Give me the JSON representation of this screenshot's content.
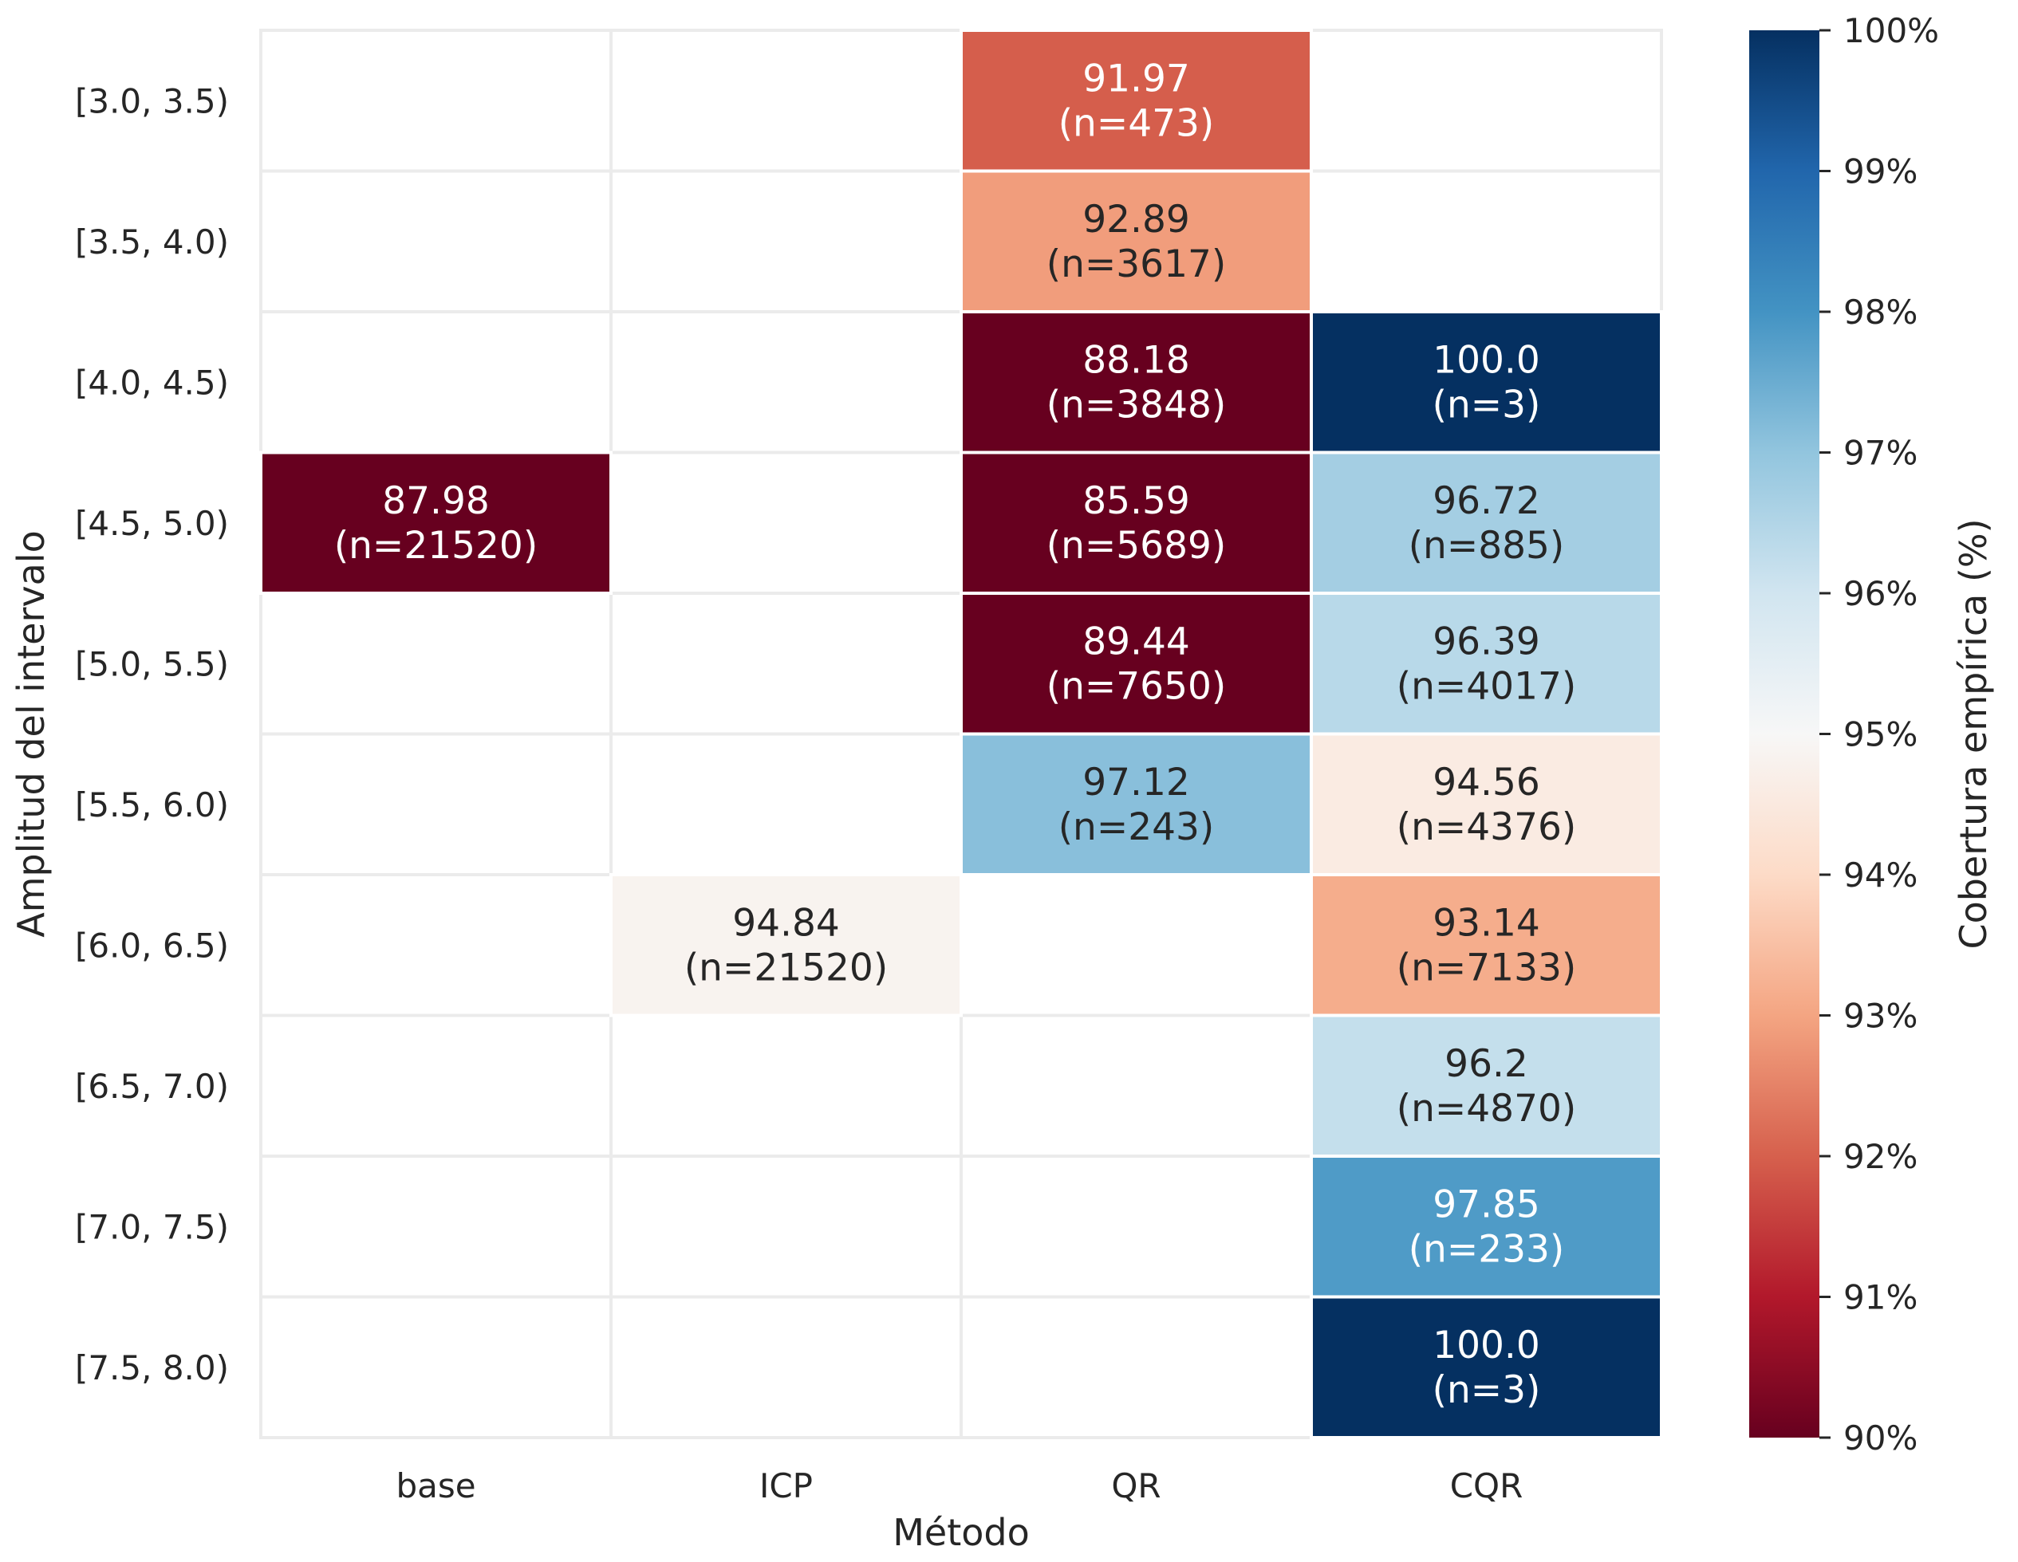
{
  "chart_data": {
    "type": "heatmap",
    "xlabel": "Método",
    "ylabel": "Amplitud del intervalo",
    "x_categories": [
      "base",
      "ICP",
      "QR",
      "CQR"
    ],
    "y_categories": [
      "[3.0, 3.5)",
      "[3.5, 4.0)",
      "[4.0, 4.5)",
      "[4.5, 5.0)",
      "[5.0, 5.5)",
      "[5.5, 6.0)",
      "[6.0, 6.5)",
      "[6.5, 7.0)",
      "[7.0, 7.5)",
      "[7.5, 8.0)"
    ],
    "cells": [
      {
        "x": "QR",
        "y": "[3.0, 3.5)",
        "value": 91.97,
        "label": "91.97",
        "count_label": "(n=473)"
      },
      {
        "x": "QR",
        "y": "[3.5, 4.0)",
        "value": 92.89,
        "label": "92.89",
        "count_label": "(n=3617)"
      },
      {
        "x": "QR",
        "y": "[4.0, 4.5)",
        "value": 88.18,
        "label": "88.18",
        "count_label": "(n=3848)"
      },
      {
        "x": "CQR",
        "y": "[4.0, 4.5)",
        "value": 100.0,
        "label": "100.0",
        "count_label": "(n=3)"
      },
      {
        "x": "base",
        "y": "[4.5, 5.0)",
        "value": 87.98,
        "label": "87.98",
        "count_label": "(n=21520)"
      },
      {
        "x": "QR",
        "y": "[4.5, 5.0)",
        "value": 85.59,
        "label": "85.59",
        "count_label": "(n=5689)"
      },
      {
        "x": "CQR",
        "y": "[4.5, 5.0)",
        "value": 96.72,
        "label": "96.72",
        "count_label": "(n=885)"
      },
      {
        "x": "QR",
        "y": "[5.0, 5.5)",
        "value": 89.44,
        "label": "89.44",
        "count_label": "(n=7650)"
      },
      {
        "x": "CQR",
        "y": "[5.0, 5.5)",
        "value": 96.39,
        "label": "96.39",
        "count_label": "(n=4017)"
      },
      {
        "x": "QR",
        "y": "[5.5, 6.0)",
        "value": 97.12,
        "label": "97.12",
        "count_label": "(n=243)"
      },
      {
        "x": "CQR",
        "y": "[5.5, 6.0)",
        "value": 94.56,
        "label": "94.56",
        "count_label": "(n=4376)"
      },
      {
        "x": "ICP",
        "y": "[6.0, 6.5)",
        "value": 94.84,
        "label": "94.84",
        "count_label": "(n=21520)"
      },
      {
        "x": "CQR",
        "y": "[6.0, 6.5)",
        "value": 93.14,
        "label": "93.14",
        "count_label": "(n=7133)"
      },
      {
        "x": "CQR",
        "y": "[6.5, 7.0)",
        "value": 96.2,
        "label": "96.2",
        "count_label": "(n=4870)"
      },
      {
        "x": "CQR",
        "y": "[7.0, 7.5)",
        "value": 97.85,
        "label": "97.85",
        "count_label": "(n=233)"
      },
      {
        "x": "CQR",
        "y": "[7.5, 8.0)",
        "value": 100.0,
        "label": "100.0",
        "count_label": "(n=3)"
      }
    ],
    "colorbar": {
      "label": "Cobertura empírica (%)",
      "range": [
        90,
        100
      ],
      "colormap": "RdBu",
      "ticks": [
        {
          "value": 100,
          "label": "100%"
        },
        {
          "value": 99,
          "label": "99%"
        },
        {
          "value": 98,
          "label": "98%"
        },
        {
          "value": 97,
          "label": "97%"
        },
        {
          "value": 96,
          "label": "96%"
        },
        {
          "value": 95,
          "label": "95%"
        },
        {
          "value": 94,
          "label": "94%"
        },
        {
          "value": 93,
          "label": "93%"
        },
        {
          "value": 92,
          "label": "92%"
        },
        {
          "value": 91,
          "label": "91%"
        },
        {
          "value": 90,
          "label": "90%"
        }
      ]
    },
    "grid": true
  }
}
